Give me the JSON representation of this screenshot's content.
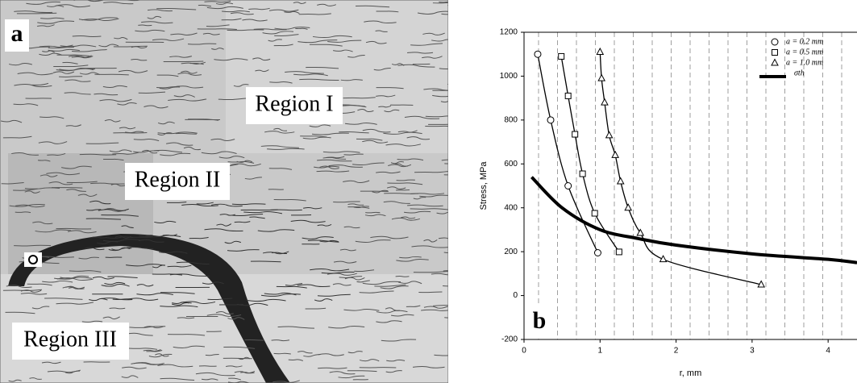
{
  "panel_a": {
    "label": "a",
    "regions": [
      "Region I",
      "Region II",
      "Region III"
    ]
  },
  "chart_data": {
    "type": "line",
    "panel_label": "b",
    "x_label": "r, mm",
    "y_label": "Stress, MPa",
    "xlim": [
      0,
      4.38
    ],
    "ylim": [
      -200,
      1200
    ],
    "xticks": [
      0,
      1,
      2,
      3,
      4
    ],
    "yticks": [
      -200,
      0,
      200,
      400,
      600,
      800,
      1000,
      1200
    ],
    "series": [
      {
        "name": "a = 0.2 mm",
        "marker": "circle",
        "color": "#000000",
        "x": [
          0.18,
          0.35,
          0.58,
          0.97
        ],
        "values": [
          1100,
          800,
          500,
          195
        ]
      },
      {
        "name": "a = 0.5 mm",
        "marker": "square",
        "color": "#000000",
        "x": [
          0.49,
          0.58,
          0.67,
          0.77,
          0.93,
          1.25
        ],
        "values": [
          1090,
          910,
          735,
          555,
          375,
          199
        ]
      },
      {
        "name": "a = 1.0 mm",
        "marker": "triangle",
        "color": "#000000",
        "x": [
          1.0,
          1.02,
          1.06,
          1.12,
          1.2,
          1.27,
          1.37,
          1.53,
          1.83,
          3.12
        ],
        "values": [
          1110,
          990,
          880,
          730,
          640,
          520,
          400,
          285,
          165,
          50
        ]
      },
      {
        "name": "σth",
        "marker": "none",
        "color": "#000000",
        "x": [
          0.1,
          0.5,
          1.0,
          1.5,
          2.0,
          3.0,
          4.0,
          4.38
        ],
        "values": [
          540,
          400,
          300,
          260,
          230,
          190,
          165,
          150
        ]
      }
    ]
  }
}
